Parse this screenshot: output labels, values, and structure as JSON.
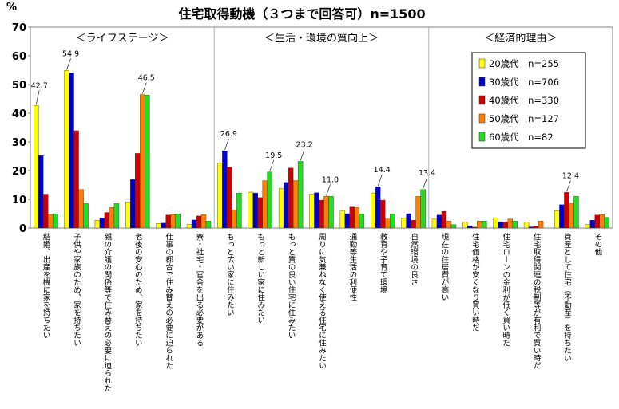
{
  "chart_data": {
    "type": "bar",
    "title": "住宅取得動機（３つまで回答可）n=1500",
    "ylabel": "%",
    "ylim": [
      0,
      70
    ],
    "yticks": [
      0,
      10,
      20,
      30,
      40,
      50,
      60,
      70
    ],
    "grid": false,
    "legend_position": "top-right",
    "groups": [
      {
        "label": "＜ライフステージ＞",
        "start": 0,
        "end": 5
      },
      {
        "label": "＜生活・環境の質向上＞",
        "start": 6,
        "end": 12
      },
      {
        "label": "＜経済的理由＞",
        "start": 13,
        "end": 18
      }
    ],
    "categories": [
      "結婚、出産を機に家を持ちたい",
      "子供や家族のため、家を持ちたい",
      "親の介護の関係等で住み替えの必要に迫られた",
      "老後の安心のため、家を持ちたい",
      "仕事の都合で住み替えの必要に迫られた",
      "寮・社宅・官舎を出る必要がある",
      "もっと広い家に住みたい",
      "もっと新しい家に住みたい",
      "もっと質の良い住宅に住みたい",
      "周りに気兼ねなく使える住宅に住みたい",
      "通勤等生活の利便性",
      "教育や子育て環境",
      "自然環境の良さ",
      "現在の住居費が高い",
      "住宅価格が安くなり買い時だ",
      "住宅ローンの金利が低く買い時だ",
      "住宅取得関連の税制等が有利で買い時だ",
      "資産として住宅（不動産）を持ちたい",
      "その他"
    ],
    "series": [
      {
        "name": "20歳代　n=255",
        "color": "#ffff00",
        "values": [
          42.7,
          54.9,
          2.7,
          9.0,
          1.6,
          1.2,
          22.7,
          12.5,
          13.7,
          11.8,
          5.9,
          12.2,
          3.5,
          3.1,
          2.0,
          3.5,
          2.0,
          6.0,
          1.2
        ]
      },
      {
        "name": "30歳代　n=706",
        "color": "#0000cc",
        "values": [
          25.2,
          54.0,
          3.4,
          16.9,
          1.7,
          2.8,
          26.9,
          12.2,
          15.9,
          12.3,
          5.0,
          14.4,
          5.0,
          4.5,
          0.8,
          2.2,
          0.4,
          8.1,
          2.7
        ]
      },
      {
        "name": "40歳代　n=330",
        "color": "#cc0000",
        "values": [
          11.8,
          33.9,
          5.4,
          26.0,
          4.5,
          4.2,
          21.2,
          10.6,
          20.9,
          9.7,
          7.3,
          9.7,
          2.7,
          5.8,
          0.3,
          2.1,
          0.6,
          12.4,
          4.5
        ]
      },
      {
        "name": "50歳代　n=127",
        "color": "#ff8000",
        "values": [
          4.7,
          13.4,
          7.1,
          46.5,
          4.7,
          4.7,
          6.3,
          16.5,
          16.5,
          11.0,
          7.1,
          3.1,
          11.0,
          2.4,
          2.4,
          3.1,
          2.4,
          8.7,
          4.7
        ]
      },
      {
        "name": "60歳代　n=82",
        "color": "#22dd22",
        "values": [
          4.9,
          8.5,
          8.5,
          46.3,
          4.9,
          2.4,
          12.2,
          19.5,
          23.2,
          11.0,
          4.9,
          4.9,
          13.4,
          1.2,
          2.4,
          2.4,
          0.0,
          11.0,
          3.7
        ]
      }
    ],
    "data_labels": [
      {
        "category": 0,
        "series": 0,
        "text": "42.7"
      },
      {
        "category": 1,
        "series": 0,
        "text": "54.9"
      },
      {
        "category": 3,
        "series": 3,
        "text": "46.5"
      },
      {
        "category": 6,
        "series": 1,
        "text": "26.9"
      },
      {
        "category": 7,
        "series": 4,
        "text": "19.5"
      },
      {
        "category": 8,
        "series": 4,
        "text": "23.2"
      },
      {
        "category": 9,
        "series": 3,
        "text": "11.0"
      },
      {
        "category": 11,
        "series": 1,
        "text": "14.4"
      },
      {
        "category": 12,
        "series": 4,
        "text": "13.4"
      },
      {
        "category": 17,
        "series": 2,
        "text": "12.4"
      }
    ]
  }
}
